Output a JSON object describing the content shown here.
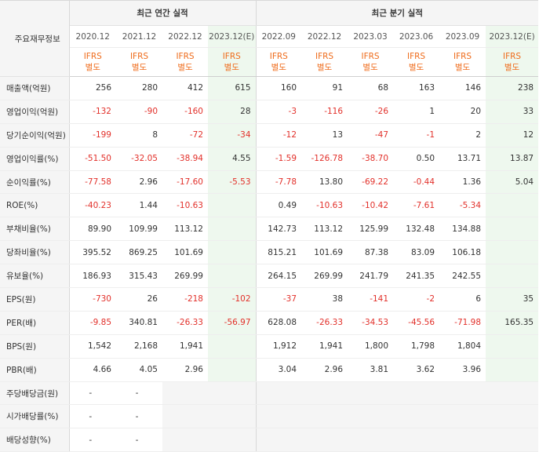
{
  "header": {
    "label": "주요재무정보",
    "annual_title": "최근 연간 실적",
    "quarter_title": "최근 분기 실적",
    "annual_periods": [
      "2020.12",
      "2021.12",
      "2022.12",
      "2023.12(E)"
    ],
    "quarter_periods": [
      "2022.09",
      "2022.12",
      "2023.03",
      "2023.06",
      "2023.09",
      "2023.12(E)"
    ],
    "ifrs_line1": "IFRS",
    "ifrs_line2": "별도"
  },
  "rows": [
    {
      "label": "매출액(억원)",
      "values": [
        "256",
        "280",
        "412",
        "615",
        "160",
        "91",
        "68",
        "163",
        "146",
        "238"
      ]
    },
    {
      "label": "영업이익(억원)",
      "values": [
        "-132",
        "-90",
        "-160",
        "28",
        "-3",
        "-116",
        "-26",
        "1",
        "20",
        "33"
      ]
    },
    {
      "label": "당기순이익(억원)",
      "values": [
        "-199",
        "8",
        "-72",
        "-34",
        "-12",
        "13",
        "-47",
        "-1",
        "2",
        "12"
      ]
    },
    {
      "label": "영업이익률(%)",
      "values": [
        "-51.50",
        "-32.05",
        "-38.94",
        "4.55",
        "-1.59",
        "-126.78",
        "-38.70",
        "0.50",
        "13.71",
        "13.87"
      ]
    },
    {
      "label": "순이익률(%)",
      "values": [
        "-77.58",
        "2.96",
        "-17.60",
        "-5.53",
        "-7.78",
        "13.80",
        "-69.22",
        "-0.44",
        "1.36",
        "5.04"
      ]
    },
    {
      "label": "ROE(%)",
      "values": [
        "-40.23",
        "1.44",
        "-10.63",
        "",
        "0.49",
        "-10.63",
        "-10.42",
        "-7.61",
        "-5.34",
        ""
      ]
    },
    {
      "label": "부채비율(%)",
      "values": [
        "89.90",
        "109.99",
        "113.12",
        "",
        "142.73",
        "113.12",
        "125.99",
        "132.48",
        "134.88",
        ""
      ]
    },
    {
      "label": "당좌비율(%)",
      "values": [
        "395.52",
        "869.25",
        "101.69",
        "",
        "815.21",
        "101.69",
        "87.38",
        "83.09",
        "106.18",
        ""
      ]
    },
    {
      "label": "유보율(%)",
      "values": [
        "186.93",
        "315.43",
        "269.99",
        "",
        "264.15",
        "269.99",
        "241.79",
        "241.35",
        "242.55",
        ""
      ]
    },
    {
      "label": "EPS(원)",
      "values": [
        "-730",
        "26",
        "-218",
        "-102",
        "-37",
        "38",
        "-141",
        "-2",
        "6",
        "35"
      ]
    },
    {
      "label": "PER(배)",
      "values": [
        "-9.85",
        "340.81",
        "-26.33",
        "-56.97",
        "628.08",
        "-26.33",
        "-34.53",
        "-45.56",
        "-71.98",
        "165.35"
      ]
    },
    {
      "label": "BPS(원)",
      "values": [
        "1,542",
        "2,168",
        "1,941",
        "",
        "1,912",
        "1,941",
        "1,800",
        "1,798",
        "1,804",
        ""
      ]
    },
    {
      "label": "PBR(배)",
      "values": [
        "4.66",
        "4.05",
        "2.96",
        "",
        "3.04",
        "2.96",
        "3.81",
        "3.62",
        "3.96",
        ""
      ]
    },
    {
      "label": "주당배당금(원)",
      "values": [
        "-",
        "-"
      ]
    },
    {
      "label": "시가배당률(%)",
      "values": [
        "-",
        "-"
      ]
    },
    {
      "label": "배당성향(%)",
      "values": [
        "-",
        "-"
      ]
    }
  ],
  "colors": {
    "negative": "#e2302a",
    "ifrs": "#ef6c1c",
    "estimate_bg": "#eef8ee"
  }
}
